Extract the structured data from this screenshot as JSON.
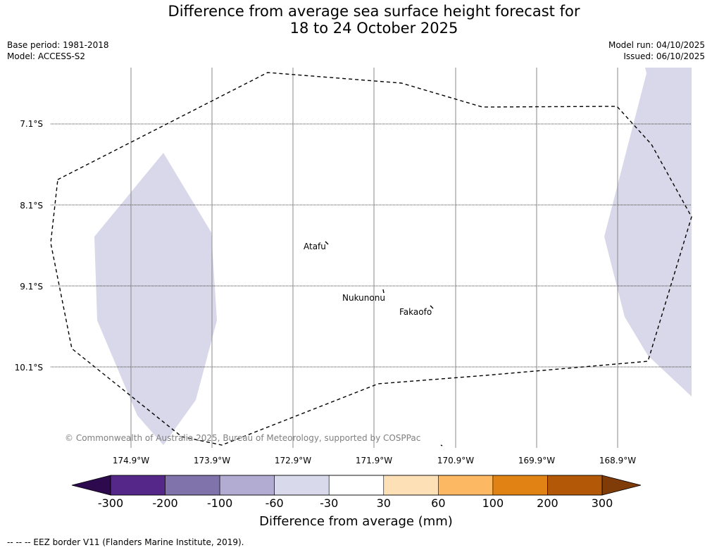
{
  "title": {
    "line1": "Difference from average sea surface height forecast for",
    "line2": "18 to 24 October 2025"
  },
  "meta": {
    "base_period": "Base period: 1981-2018",
    "model": "Model: ACCESS-S2",
    "model_run": "Model run: 04/10/2025",
    "issued": "Issued: 06/10/2025"
  },
  "map": {
    "lat_labels": [
      "7.1°S",
      "8.1°S",
      "9.1°S",
      "10.1°S"
    ],
    "lon_labels": [
      "174.9°W",
      "173.9°W",
      "172.9°W",
      "171.9°W",
      "170.9°W",
      "169.9°W",
      "168.9°W"
    ],
    "places": [
      {
        "name": "Atafu"
      },
      {
        "name": "Nukunonu"
      },
      {
        "name": "Fakaofo"
      }
    ],
    "copyright": "© Commonwealth of Australia 2025, Bureau of Meteorology, supported by COSPPac",
    "anomaly_fill_color": "#d8d8ea"
  },
  "colorbar": {
    "label": "Difference from average (mm)",
    "ticks": [
      "-300",
      "-200",
      "-100",
      "-60",
      "-30",
      "30",
      "60",
      "100",
      "200",
      "300"
    ],
    "under_color": "#2d0a4e",
    "over_color": "#7f3b08",
    "colors": [
      "#542788",
      "#8073ac",
      "#b2abd2",
      "#d8daeb",
      "#ffffff",
      "#fee0b6",
      "#fdb863",
      "#e08214",
      "#b35806"
    ]
  },
  "footer": {
    "eez_note": "--  --  -- EEZ border V11 (Flanders Marine Institute, 2019)."
  }
}
